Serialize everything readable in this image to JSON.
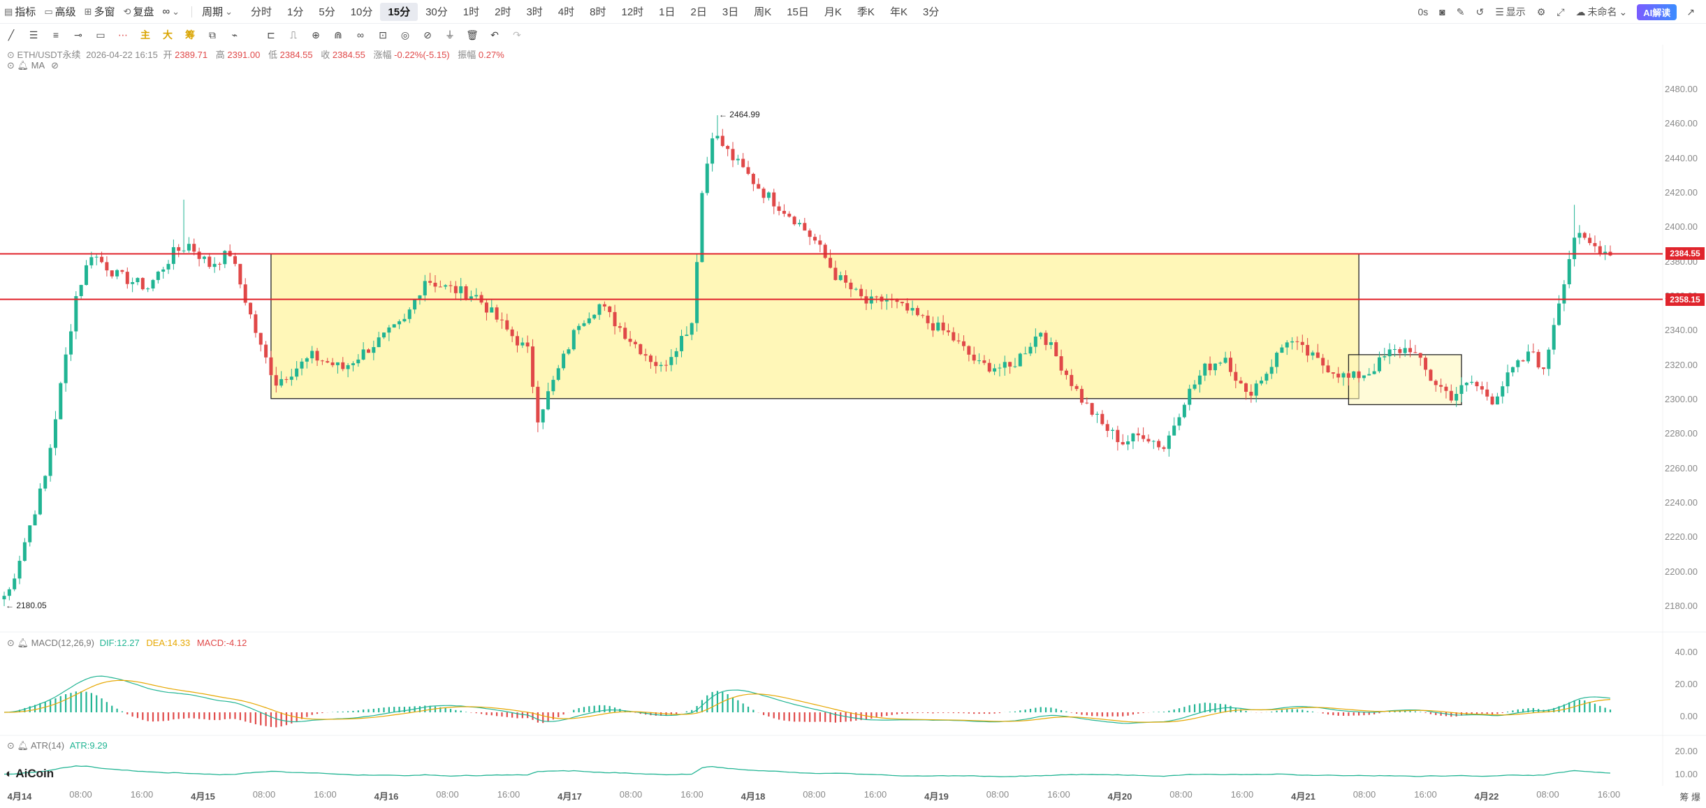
{
  "toolbar": {
    "indicator": "指标",
    "advanced": "高级",
    "multi_window": "多窗",
    "replay": "复盘",
    "link_symbol": "∞",
    "period_menu": "周期",
    "periods": [
      "分时",
      "1分",
      "5分",
      "10分",
      "15分",
      "30分",
      "1时",
      "2时",
      "3时",
      "4时",
      "8时",
      "12时",
      "1日",
      "2日",
      "3日",
      "周K",
      "15日",
      "月K",
      "季K",
      "年K",
      "3分"
    ],
    "active_period": "15分",
    "countdown": "0s",
    "display": "显示",
    "unnamed": "未命名",
    "ai_button": "AI解读"
  },
  "info": {
    "symbol": "ETH/USDT永续",
    "datetime": "2026-04-22 16:15",
    "open_label": "开",
    "open": "2389.71",
    "high_label": "高",
    "high": "2391.00",
    "low_label": "低",
    "low": "2384.55",
    "close_label": "收",
    "close": "2384.55",
    "change_label": "涨幅",
    "change": "-0.22%(-5.15)",
    "amp_label": "振幅",
    "amp": "0.27%",
    "ma": "MA"
  },
  "macd": {
    "label": "MACD(12,26,9)",
    "dif": "DIF:12.27",
    "dea": "DEA:14.33",
    "macd": "MACD:-4.12"
  },
  "atr": {
    "label": "ATR(14)",
    "value": "ATR:9.29"
  },
  "price_axis": [
    "2480.00",
    "2460.00",
    "2440.00",
    "2420.00",
    "2400.00",
    "2380.00",
    "2360.00",
    "2340.00",
    "2320.00",
    "2300.00",
    "2280.00",
    "2260.00",
    "2240.00",
    "2220.00",
    "2200.00",
    "2180.00"
  ],
  "macd_axis": [
    "40.00",
    "20.00",
    "0.00"
  ],
  "atr_axis": [
    "20.00",
    "10.00"
  ],
  "price_tags": [
    {
      "value": "2384.55",
      "price": 2384.55,
      "color": "#e0242c"
    },
    {
      "value": "2358.15",
      "price": 2358.15,
      "color": "#e0242c"
    }
  ],
  "extremes": {
    "high": "2464.99",
    "low": "2180.05"
  },
  "time_axis": [
    {
      "t": "4月14",
      "day": true
    },
    {
      "t": "08:00"
    },
    {
      "t": "16:00"
    },
    {
      "t": "4月15",
      "day": true
    },
    {
      "t": "08:00"
    },
    {
      "t": "16:00"
    },
    {
      "t": "4月16",
      "day": true
    },
    {
      "t": "08:00"
    },
    {
      "t": "16:00"
    },
    {
      "t": "4月17",
      "day": true
    },
    {
      "t": "08:00"
    },
    {
      "t": "16:00"
    },
    {
      "t": "4月18",
      "day": true
    },
    {
      "t": "08:00"
    },
    {
      "t": "16:00"
    },
    {
      "t": "4月19",
      "day": true
    },
    {
      "t": "08:00"
    },
    {
      "t": "16:00"
    },
    {
      "t": "4月20",
      "day": true
    },
    {
      "t": "08:00"
    },
    {
      "t": "16:00"
    },
    {
      "t": "4月21",
      "day": true
    },
    {
      "t": "08:00"
    },
    {
      "t": "16:00"
    },
    {
      "t": "4月22",
      "day": true
    },
    {
      "t": "08:00"
    },
    {
      "t": "16:00"
    }
  ],
  "logo": "AiCoin",
  "bottom_right": "筹 爆",
  "colors": {
    "up": "#20b493",
    "down": "#e04848",
    "zone_fill": "#fff7b8",
    "level_line": "#e0242c"
  },
  "chart_data": {
    "type": "candlestick",
    "symbol": "ETH/USDT永续",
    "interval": "15分",
    "ylim": [
      2170,
      2490
    ],
    "key_prices": [
      2464.99,
      2180.05,
      2384.55,
      2358.15
    ],
    "approx_path": [
      [
        0,
        2180
      ],
      [
        8,
        2255
      ],
      [
        14,
        2360
      ],
      [
        17,
        2385
      ],
      [
        22,
        2372
      ],
      [
        28,
        2365
      ],
      [
        33,
        2385
      ],
      [
        36,
        2390
      ],
      [
        40,
        2378
      ],
      [
        44,
        2385
      ],
      [
        47,
        2358
      ],
      [
        50,
        2330
      ],
      [
        53,
        2310
      ],
      [
        60,
        2325
      ],
      [
        66,
        2318
      ],
      [
        72,
        2332
      ],
      [
        78,
        2345
      ],
      [
        82,
        2370
      ],
      [
        86,
        2365
      ],
      [
        92,
        2360
      ],
      [
        98,
        2340
      ],
      [
        102,
        2328
      ],
      [
        104,
        2290
      ],
      [
        107,
        2310
      ],
      [
        112,
        2345
      ],
      [
        116,
        2355
      ],
      [
        122,
        2335
      ],
      [
        128,
        2318
      ],
      [
        134,
        2345
      ],
      [
        136,
        2420
      ],
      [
        138,
        2455
      ],
      [
        142,
        2440
      ],
      [
        148,
        2420
      ],
      [
        154,
        2405
      ],
      [
        158,
        2392
      ],
      [
        162,
        2372
      ],
      [
        168,
        2356
      ],
      [
        172,
        2358
      ],
      [
        178,
        2348
      ],
      [
        184,
        2338
      ],
      [
        190,
        2320
      ],
      [
        196,
        2318
      ],
      [
        202,
        2340
      ],
      [
        206,
        2320
      ],
      [
        210,
        2300
      ],
      [
        214,
        2285
      ],
      [
        218,
        2275
      ],
      [
        222,
        2280
      ],
      [
        226,
        2272
      ],
      [
        230,
        2300
      ],
      [
        234,
        2318
      ],
      [
        238,
        2325
      ],
      [
        242,
        2302
      ],
      [
        246,
        2316
      ],
      [
        250,
        2335
      ],
      [
        256,
        2322
      ],
      [
        262,
        2312
      ],
      [
        266,
        2316
      ],
      [
        270,
        2327
      ],
      [
        274,
        2330
      ],
      [
        278,
        2312
      ],
      [
        282,
        2302
      ],
      [
        286,
        2310
      ],
      [
        290,
        2300
      ],
      [
        294,
        2317
      ],
      [
        298,
        2328
      ],
      [
        300,
        2315
      ],
      [
        302,
        2345
      ],
      [
        304,
        2370
      ],
      [
        306,
        2395
      ],
      [
        309,
        2390
      ],
      [
        312,
        2386
      ]
    ],
    "zones": [
      {
        "from_price": 2300.5,
        "to_price": 2384.55,
        "from_x": 52,
        "to_x": 264
      },
      {
        "from_price": 2297,
        "to_price": 2326,
        "from_x": 262,
        "to_x": 284
      }
    ],
    "levels": [
      2384.55,
      2358.15
    ]
  }
}
